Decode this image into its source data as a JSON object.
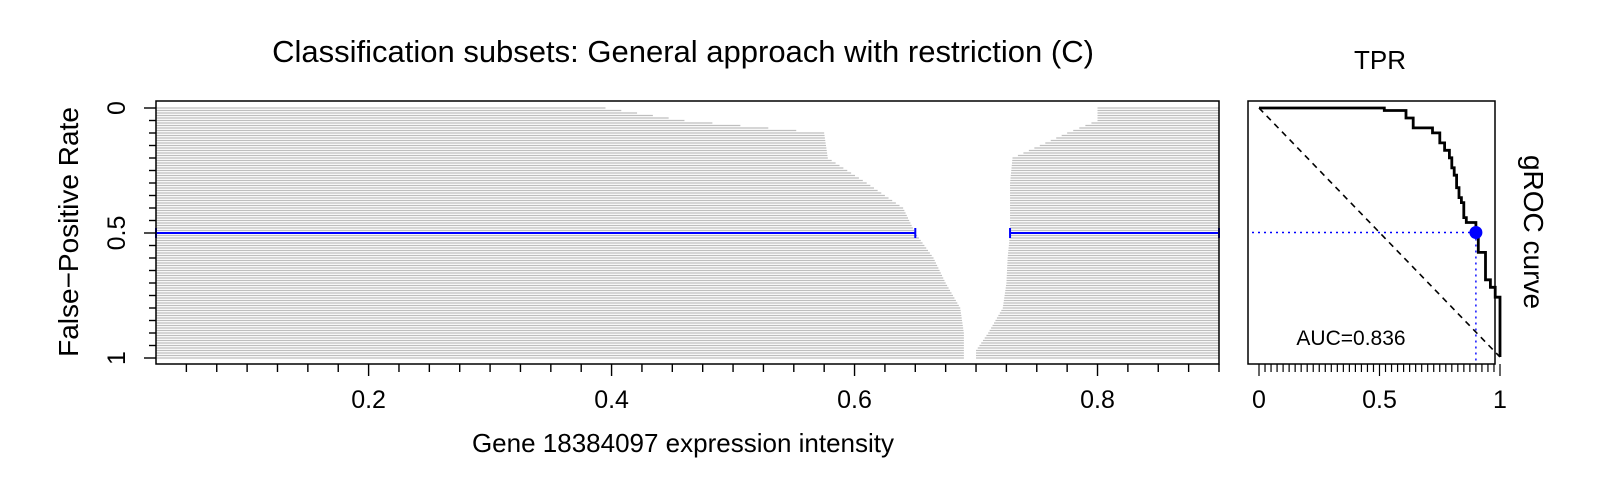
{
  "chart_data": [
    {
      "type": "bar",
      "title": "Classification subsets: General approach with restriction (C)",
      "xlabel": "Gene 18384097 expression intensity",
      "ylabel": "False−Positive Rate",
      "xlim": [
        0.025,
        0.9
      ],
      "ylim": [
        1,
        0
      ],
      "xticks": [
        0.2,
        0.4,
        0.6,
        0.8
      ],
      "xtick_labels": [
        "0.2",
        "0.4",
        "0.6",
        "0.8"
      ],
      "yticks": [
        0,
        0.5,
        1
      ],
      "ytick_labels": [
        "0",
        "0.5",
        "1"
      ],
      "subset_rows": 100,
      "subset_profile": [
        [
          0,
          0.395,
          0.8
        ],
        [
          0.05,
          0.46,
          0.8
        ],
        [
          0.1,
          0.575,
          0.775
        ],
        [
          0.2,
          0.578,
          0.73
        ],
        [
          0.3,
          0.61,
          0.728
        ],
        [
          0.4,
          0.64,
          0.728
        ],
        [
          0.5,
          0.65,
          0.728
        ],
        [
          0.6,
          0.665,
          0.726
        ],
        [
          0.7,
          0.675,
          0.725
        ],
        [
          0.8,
          0.687,
          0.722
        ],
        [
          0.9,
          0.69,
          0.71
        ],
        [
          0.97,
          0.69,
          0.7
        ],
        [
          1.0,
          0.69,
          0.7
        ]
      ],
      "highlight": {
        "fpr": 0.5,
        "segments": [
          [
            0.025,
            0.65
          ],
          [
            0.728,
            0.9
          ]
        ],
        "color": "#0000ff"
      },
      "colors": {
        "subset": "#bebebe",
        "axis": "#000000"
      }
    },
    {
      "type": "line",
      "title": "TPR",
      "side_label": "gROC curve",
      "annotation": "AUC=0.836",
      "xlim": [
        0,
        1
      ],
      "ylim": [
        1,
        0
      ],
      "xticks": [
        0,
        0.5,
        1
      ],
      "xtick_labels": [
        "0",
        "0.5",
        "1"
      ],
      "series": [
        {
          "style": "step",
          "points": [
            [
              0,
              0
            ],
            [
              0.52,
              0
            ],
            [
              0.52,
              0.01
            ],
            [
              0.61,
              0.01
            ],
            [
              0.61,
              0.04
            ],
            [
              0.64,
              0.04
            ],
            [
              0.64,
              0.08
            ],
            [
              0.72,
              0.08
            ],
            [
              0.72,
              0.1
            ],
            [
              0.75,
              0.1
            ],
            [
              0.75,
              0.14
            ],
            [
              0.77,
              0.14
            ],
            [
              0.77,
              0.17
            ],
            [
              0.79,
              0.17
            ],
            [
              0.79,
              0.2
            ],
            [
              0.8,
              0.2
            ],
            [
              0.8,
              0.24
            ],
            [
              0.81,
              0.24
            ],
            [
              0.81,
              0.27
            ],
            [
              0.82,
              0.27
            ],
            [
              0.82,
              0.32
            ],
            [
              0.83,
              0.32
            ],
            [
              0.83,
              0.36
            ],
            [
              0.84,
              0.36
            ],
            [
              0.84,
              0.38
            ],
            [
              0.85,
              0.38
            ],
            [
              0.85,
              0.44
            ],
            [
              0.86,
              0.44
            ],
            [
              0.86,
              0.46
            ],
            [
              0.9,
              0.46
            ],
            [
              0.9,
              0.5
            ],
            [
              0.91,
              0.5
            ],
            [
              0.91,
              0.58
            ],
            [
              0.94,
              0.58
            ],
            [
              0.94,
              0.69
            ],
            [
              0.96,
              0.69
            ],
            [
              0.96,
              0.72
            ],
            [
              0.98,
              0.72
            ],
            [
              0.98,
              0.76
            ],
            [
              1.0,
              0.76
            ],
            [
              1.0,
              1.0
            ]
          ]
        }
      ],
      "chance_line": [
        [
          0,
          0
        ],
        [
          1,
          1
        ]
      ],
      "highlight_point": [
        0.9,
        0.5
      ],
      "colors": {
        "curve": "#000000",
        "point": "#0000ff",
        "guide": "#0000ff"
      }
    }
  ]
}
